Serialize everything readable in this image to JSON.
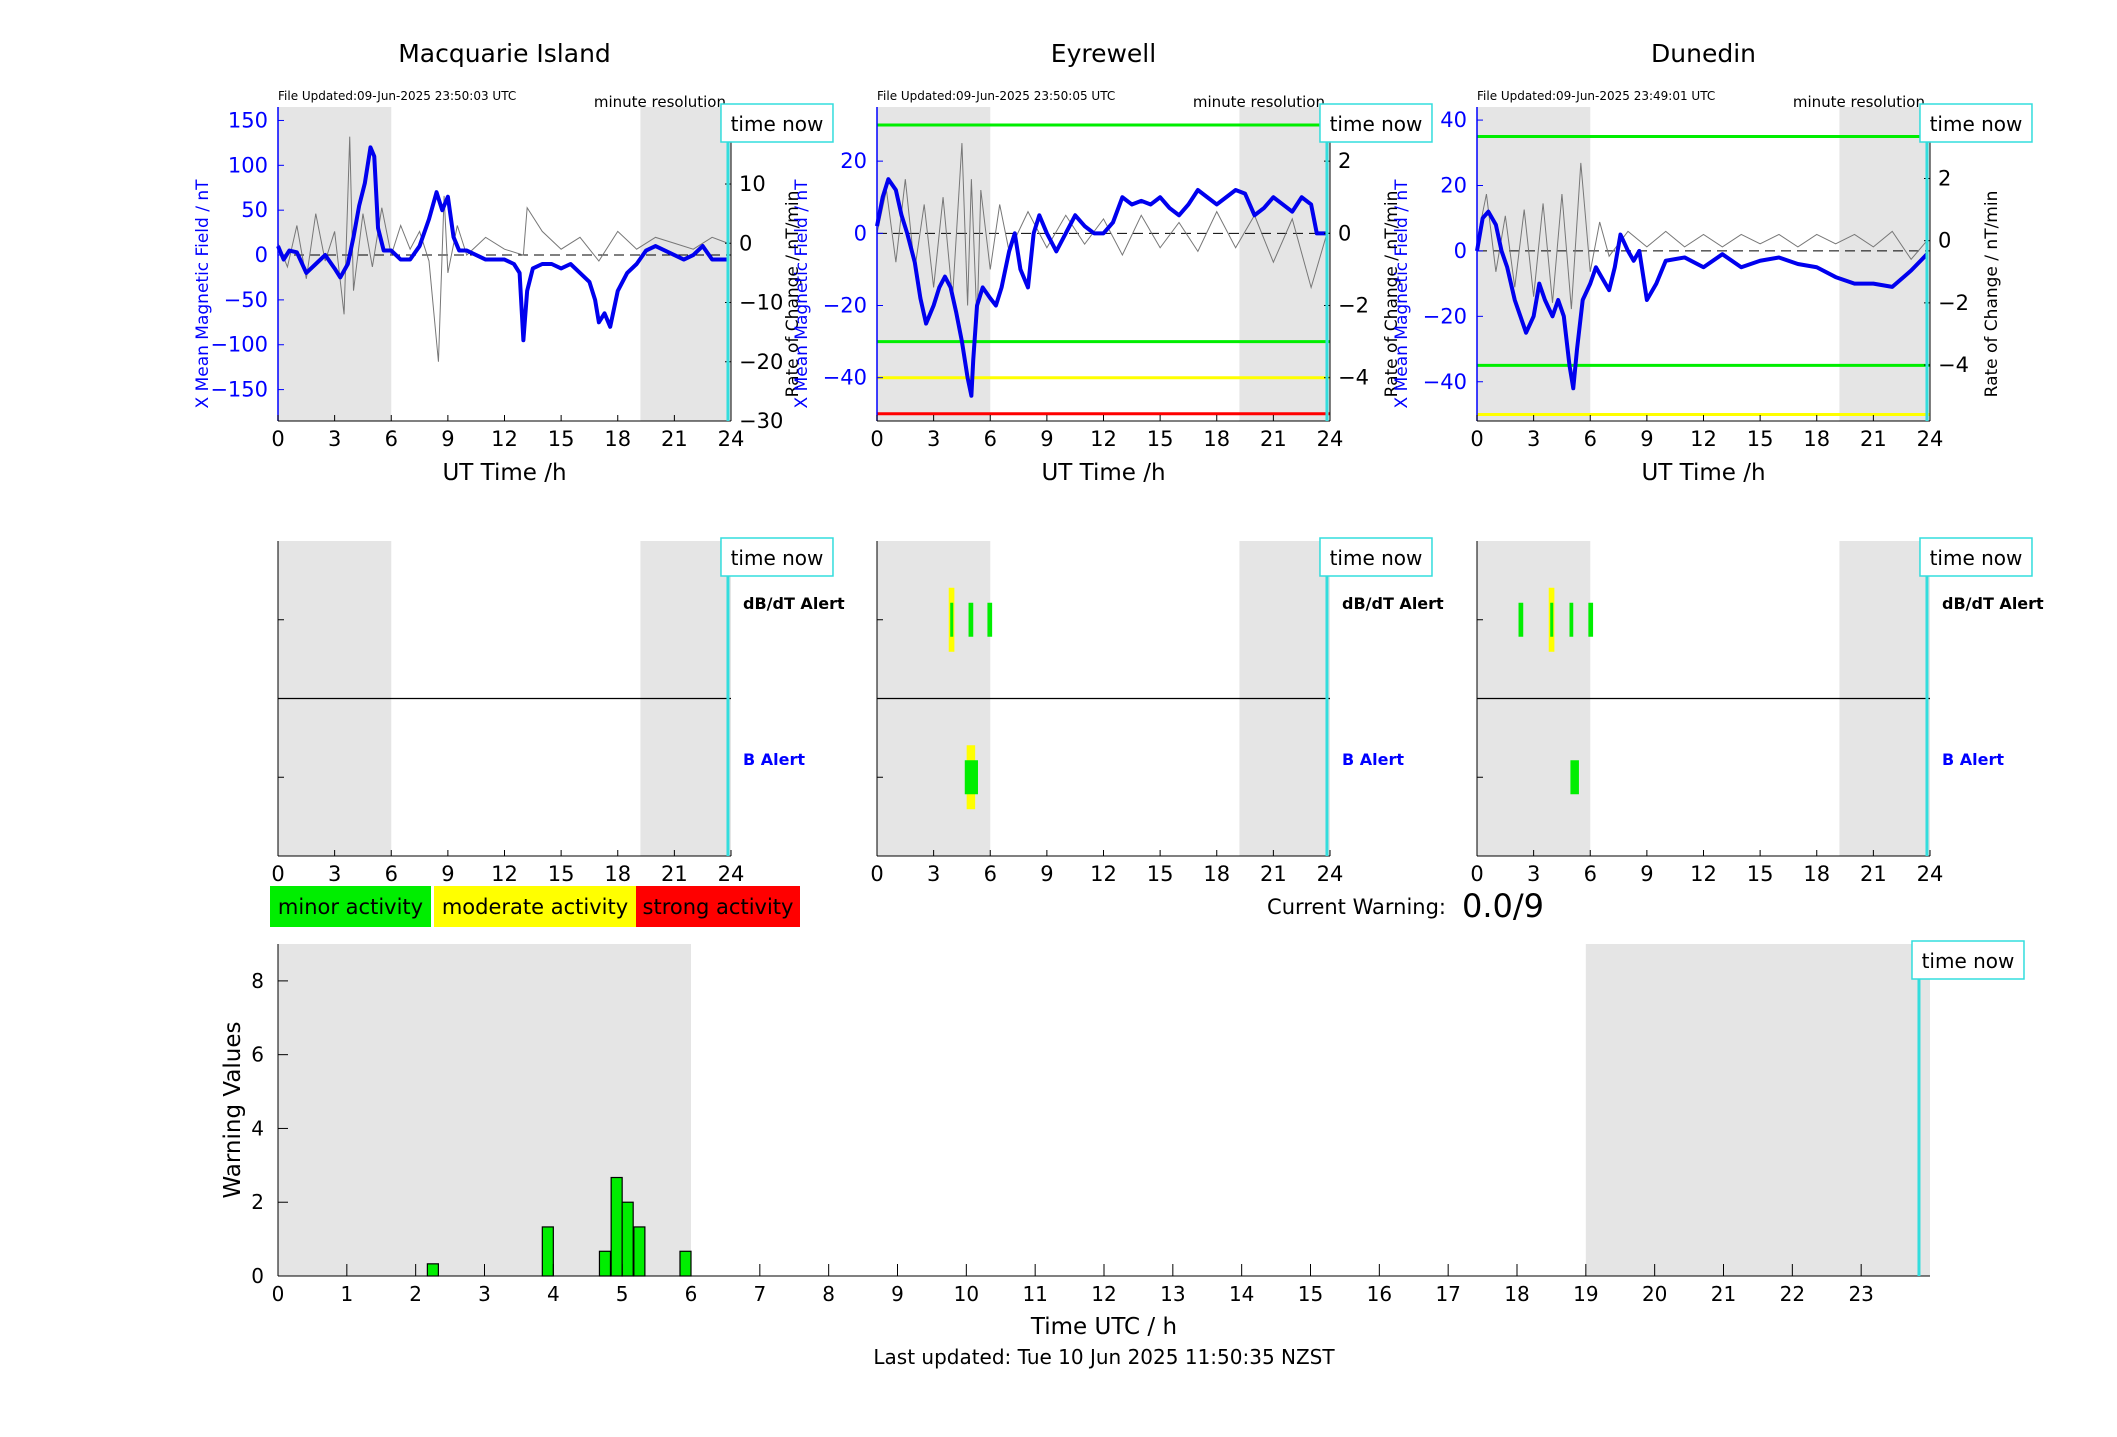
{
  "figure": {
    "time_now_label": "time now",
    "time_now_hour": 23.84,
    "colors": {
      "minor": "#00ee00",
      "moderate": "#ffff00",
      "strong": "#ff0000",
      "night_shade": "#e5e5e5",
      "time_now_line": "#33dddd",
      "b_trace": "#0000ee",
      "b_axis": "#0000ff",
      "b_alert_label": "#0000ff"
    },
    "legend": {
      "minor": "minor activity",
      "moderate": "moderate activity",
      "strong": "strong activity"
    },
    "current_warning": {
      "label": "Current Warning:",
      "value": "0.0/9"
    },
    "last_updated": "Last updated: Tue 10 Jun 2025 11:50:35 NZST"
  },
  "chart_data": [
    {
      "type": "line",
      "station": "Macquarie Island",
      "title": "Macquarie Island",
      "file_updated": "File Updated:09-Jun-2025 23:50:03 UTC",
      "resolution": "minute resolution",
      "xlabel": "UT Time /h",
      "ylabel_left": "X Mean Magnetic Field / nT",
      "ylabel_right": "Rate of Change / nT/min",
      "xlim": [
        0,
        24
      ],
      "xticks": [
        0,
        3,
        6,
        9,
        12,
        15,
        18,
        21,
        24
      ],
      "ylim_left": [
        -185,
        165
      ],
      "yticks_left": [
        -150,
        -100,
        -50,
        0,
        50,
        100,
        150
      ],
      "ylim_right": [
        -30,
        23
      ],
      "yticks_right": [
        -30,
        -20,
        -10,
        0,
        10,
        20
      ],
      "night_shade_hours": [
        [
          0,
          6
        ],
        [
          19.2,
          24
        ]
      ],
      "thresholds": [],
      "series": [
        {
          "kind": "x_field",
          "x": [
            0,
            0.3,
            0.6,
            1,
            1.5,
            2,
            2.5,
            3,
            3.3,
            3.7,
            4,
            4.3,
            4.6,
            4.9,
            5.1,
            5.3,
            5.6,
            6,
            6.5,
            7,
            7.5,
            8,
            8.4,
            8.7,
            9,
            9.3,
            9.6,
            10,
            10.5,
            11,
            11.5,
            12,
            12.5,
            12.8,
            13,
            13.2,
            13.5,
            14,
            14.5,
            15,
            15.5,
            16,
            16.5,
            16.8,
            17,
            17.3,
            17.6,
            18,
            18.5,
            19,
            19.5,
            20,
            20.5,
            21,
            21.5,
            22,
            22.5,
            23,
            23.5,
            23.84
          ],
          "y": [
            10,
            -5,
            5,
            3,
            -20,
            -10,
            0,
            -15,
            -25,
            -10,
            20,
            55,
            80,
            120,
            110,
            30,
            5,
            5,
            -5,
            -5,
            10,
            40,
            70,
            50,
            65,
            20,
            5,
            5,
            0,
            -5,
            -5,
            -5,
            -10,
            -20,
            -95,
            -40,
            -15,
            -10,
            -10,
            -15,
            -10,
            -20,
            -30,
            -50,
            -75,
            -65,
            -80,
            -40,
            -20,
            -10,
            5,
            10,
            5,
            0,
            -5,
            0,
            10,
            -5,
            -5,
            -5
          ]
        },
        {
          "kind": "rate_of_change",
          "x": [
            0,
            0.5,
            1,
            1.5,
            2,
            2.5,
            3,
            3.5,
            3.8,
            4,
            4.5,
            5,
            5.5,
            6,
            6.5,
            7,
            7.5,
            8,
            8.5,
            8.8,
            9,
            9.5,
            10,
            11,
            12,
            13,
            13.2,
            14,
            15,
            16,
            17,
            18,
            19,
            20,
            21,
            22,
            23,
            23.84
          ],
          "y": [
            0,
            -4,
            3,
            -6,
            5,
            -3,
            2,
            -12,
            18,
            -8,
            5,
            -4,
            6,
            -2,
            3,
            -1,
            2,
            -3,
            -20,
            8,
            -5,
            3,
            -2,
            1,
            -1,
            -2,
            6,
            2,
            -1,
            1,
            -3,
            2,
            -1,
            1,
            0,
            -1,
            1,
            0
          ]
        }
      ]
    },
    {
      "type": "line",
      "station": "Eyrewell",
      "title": "Eyrewell",
      "file_updated": "File Updated:09-Jun-2025 23:50:05 UTC",
      "resolution": "minute resolution",
      "xlabel": "UT Time /h",
      "ylabel_left": "X Mean Magnetic Field / nT",
      "ylabel_right": "Rate of Change / nT/min",
      "xlim": [
        0,
        24
      ],
      "xticks": [
        0,
        3,
        6,
        9,
        12,
        15,
        18,
        21,
        24
      ],
      "ylim_left": [
        -52,
        35
      ],
      "yticks_left": [
        -40,
        -20,
        0,
        20
      ],
      "ylim_right": [
        -5.2,
        3.5
      ],
      "yticks_right": [
        -4,
        -2,
        0,
        2
      ],
      "night_shade_hours": [
        [
          0,
          6
        ],
        [
          19.2,
          24
        ]
      ],
      "thresholds": [
        {
          "value": 30,
          "level": "minor"
        },
        {
          "value": -30,
          "level": "minor"
        },
        {
          "value": -40,
          "level": "moderate"
        },
        {
          "value": -50,
          "level": "strong"
        }
      ],
      "series": [
        {
          "kind": "x_field",
          "x": [
            0,
            0.3,
            0.6,
            1,
            1.3,
            1.6,
            2,
            2.3,
            2.6,
            3,
            3.3,
            3.6,
            3.9,
            4.2,
            4.5,
            4.8,
            5,
            5.1,
            5.3,
            5.6,
            6,
            6.3,
            6.6,
            7,
            7.3,
            7.6,
            8,
            8.3,
            8.6,
            9,
            9.5,
            10,
            10.5,
            11,
            11.5,
            12,
            12.5,
            13,
            13.5,
            14,
            14.5,
            15,
            15.5,
            16,
            16.5,
            17,
            17.5,
            18,
            18.5,
            19,
            19.5,
            20,
            20.5,
            21,
            21.5,
            22,
            22.5,
            23,
            23.3,
            23.5,
            23.84
          ],
          "y": [
            2,
            10,
            15,
            12,
            5,
            0,
            -8,
            -18,
            -25,
            -20,
            -15,
            -12,
            -15,
            -22,
            -30,
            -40,
            -45,
            -35,
            -20,
            -15,
            -18,
            -20,
            -15,
            -5,
            0,
            -10,
            -15,
            0,
            5,
            0,
            -5,
            0,
            5,
            2,
            0,
            0,
            3,
            10,
            8,
            9,
            8,
            10,
            7,
            5,
            8,
            12,
            10,
            8,
            10,
            12,
            11,
            5,
            7,
            10,
            8,
            6,
            10,
            8,
            0,
            0,
            0
          ]
        },
        {
          "kind": "rate_of_change",
          "x": [
            0,
            0.5,
            1,
            1.5,
            2,
            2.5,
            3,
            3.5,
            4,
            4.5,
            4.8,
            5,
            5.3,
            5.5,
            6,
            6.5,
            7,
            8,
            9,
            10,
            11,
            12,
            13,
            14,
            15,
            16,
            17,
            18,
            19,
            20,
            21,
            22,
            23,
            23.84
          ],
          "y": [
            0,
            1.2,
            -0.8,
            1.5,
            -1,
            0.8,
            -1.5,
            1,
            -1.8,
            2.5,
            -2,
            1.5,
            -2.5,
            1.2,
            -1,
            0.8,
            -0.5,
            0.6,
            -0.4,
            0.5,
            -0.3,
            0.4,
            -0.6,
            0.5,
            -0.4,
            0.3,
            -0.5,
            0.6,
            -0.4,
            0.5,
            -0.8,
            0.4,
            -1.5,
            0
          ]
        }
      ]
    },
    {
      "type": "line",
      "station": "Dunedin",
      "title": "Dunedin",
      "file_updated": "File Updated:09-Jun-2025 23:49:01 UTC",
      "resolution": "minute resolution",
      "xlabel": "UT Time /h",
      "ylabel_left": "X Mean Magnetic Field / nT",
      "ylabel_right": "Rate of Change / nT/min",
      "xlim": [
        0,
        24
      ],
      "xticks": [
        0,
        3,
        6,
        9,
        12,
        15,
        18,
        21,
        24
      ],
      "ylim_left": [
        -52,
        44
      ],
      "yticks_left": [
        -40,
        -20,
        0,
        20,
        40
      ],
      "ylim_right": [
        -5.8,
        4.3
      ],
      "yticks_right": [
        -4,
        -2,
        0,
        2,
        4
      ],
      "night_shade_hours": [
        [
          0,
          6
        ],
        [
          19.2,
          24
        ]
      ],
      "thresholds": [
        {
          "value": 35,
          "level": "minor"
        },
        {
          "value": -35,
          "level": "minor"
        },
        {
          "value": -50,
          "level": "moderate"
        }
      ],
      "series": [
        {
          "kind": "x_field",
          "x": [
            0,
            0.3,
            0.6,
            1,
            1.3,
            1.6,
            2,
            2.3,
            2.6,
            3,
            3.3,
            3.6,
            4,
            4.3,
            4.6,
            4.9,
            5.1,
            5.3,
            5.6,
            6,
            6.3,
            6.6,
            7,
            7.3,
            7.6,
            8,
            8.3,
            8.6,
            9,
            9.5,
            10,
            11,
            12,
            13,
            14,
            15,
            16,
            17,
            18,
            19,
            20,
            21,
            22,
            23,
            23.84
          ],
          "y": [
            0,
            10,
            12,
            8,
            0,
            -5,
            -15,
            -20,
            -25,
            -20,
            -10,
            -15,
            -20,
            -15,
            -20,
            -35,
            -42,
            -30,
            -15,
            -10,
            -5,
            -8,
            -12,
            -5,
            5,
            0,
            -3,
            0,
            -15,
            -10,
            -3,
            -2,
            -5,
            -1,
            -5,
            -3,
            -2,
            -4,
            -5,
            -8,
            -10,
            -10,
            -11,
            -6,
            -1
          ]
        },
        {
          "kind": "rate_of_change",
          "x": [
            0,
            0.5,
            1,
            1.5,
            2,
            2.5,
            3,
            3.5,
            4,
            4.5,
            5,
            5.5,
            6,
            6.5,
            7,
            8,
            9,
            10,
            11,
            12,
            13,
            14,
            15,
            16,
            17,
            18,
            19,
            20,
            21,
            22,
            23,
            23.84
          ],
          "y": [
            0,
            1.5,
            -1,
            0.8,
            -1.5,
            1,
            -1.8,
            1.2,
            -2,
            1.5,
            -2.2,
            2.5,
            -1,
            0.6,
            -0.5,
            0.3,
            -0.2,
            0.3,
            -0.2,
            0.2,
            -0.2,
            0.2,
            -0.1,
            0.2,
            -0.2,
            0.2,
            -0.1,
            0.2,
            -0.2,
            0.3,
            -0.6,
            0
          ]
        }
      ]
    },
    {
      "type": "bar",
      "kind": "alert_strip",
      "station": "Macquarie Island",
      "xlim": [
        0,
        24
      ],
      "xticks": [
        0,
        3,
        6,
        9,
        12,
        15,
        18,
        21,
        24
      ],
      "row_labels": {
        "dbdt": "dB/dT Alert",
        "b": "B Alert"
      },
      "night_shade_hours": [
        [
          0,
          6
        ],
        [
          19.2,
          24
        ]
      ],
      "dbdt_alerts": [],
      "b_alerts": []
    },
    {
      "type": "bar",
      "kind": "alert_strip",
      "station": "Eyrewell",
      "xlim": [
        0,
        24
      ],
      "xticks": [
        0,
        3,
        6,
        9,
        12,
        15,
        18,
        21,
        24
      ],
      "row_labels": {
        "dbdt": "dB/dT Alert",
        "b": "B Alert"
      },
      "night_shade_hours": [
        [
          0,
          6
        ],
        [
          19.2,
          24
        ]
      ],
      "dbdt_alerts": [
        {
          "start": 3.8,
          "end": 4.1,
          "level": "moderate"
        },
        {
          "start": 3.88,
          "end": 4.02,
          "level": "minor"
        },
        {
          "start": 4.85,
          "end": 5.1,
          "level": "minor"
        },
        {
          "start": 5.85,
          "end": 6.1,
          "level": "minor"
        }
      ],
      "b_alerts": [
        {
          "start": 4.75,
          "end": 5.2,
          "level": "moderate"
        },
        {
          "start": 4.65,
          "end": 5.35,
          "level": "minor"
        }
      ]
    },
    {
      "type": "bar",
      "kind": "alert_strip",
      "station": "Dunedin",
      "xlim": [
        0,
        24
      ],
      "xticks": [
        0,
        3,
        6,
        9,
        12,
        15,
        18,
        21,
        24
      ],
      "row_labels": {
        "dbdt": "dB/dT Alert",
        "b": "B Alert"
      },
      "night_shade_hours": [
        [
          0,
          6
        ],
        [
          19.2,
          24
        ]
      ],
      "dbdt_alerts": [
        {
          "start": 2.2,
          "end": 2.45,
          "level": "minor"
        },
        {
          "start": 3.8,
          "end": 4.1,
          "level": "moderate"
        },
        {
          "start": 3.88,
          "end": 4.02,
          "level": "minor"
        },
        {
          "start": 4.9,
          "end": 5.1,
          "level": "minor"
        },
        {
          "start": 5.9,
          "end": 6.15,
          "level": "minor"
        }
      ],
      "b_alerts": [
        {
          "start": 4.95,
          "end": 5.4,
          "level": "minor"
        }
      ]
    },
    {
      "type": "bar",
      "kind": "warning_values",
      "xlabel": "Time UTC / h",
      "ylabel": "Warning Values",
      "xlim": [
        0,
        24
      ],
      "xticks": [
        0,
        1,
        2,
        3,
        4,
        5,
        6,
        7,
        8,
        9,
        10,
        11,
        12,
        13,
        14,
        15,
        16,
        17,
        18,
        19,
        20,
        21,
        22,
        23
      ],
      "ylim": [
        0,
        9
      ],
      "yticks": [
        0,
        2,
        4,
        6,
        8
      ],
      "night_shade_hours": [
        [
          0,
          6
        ],
        [
          19,
          24
        ]
      ],
      "bar_width_hours": 0.16,
      "bars": [
        {
          "x": 2.25,
          "value": 0.33
        },
        {
          "x": 3.92,
          "value": 1.33
        },
        {
          "x": 4.75,
          "value": 0.67
        },
        {
          "x": 4.92,
          "value": 2.67
        },
        {
          "x": 5.08,
          "value": 2.0
        },
        {
          "x": 5.25,
          "value": 1.33
        },
        {
          "x": 5.92,
          "value": 0.67
        }
      ]
    }
  ]
}
